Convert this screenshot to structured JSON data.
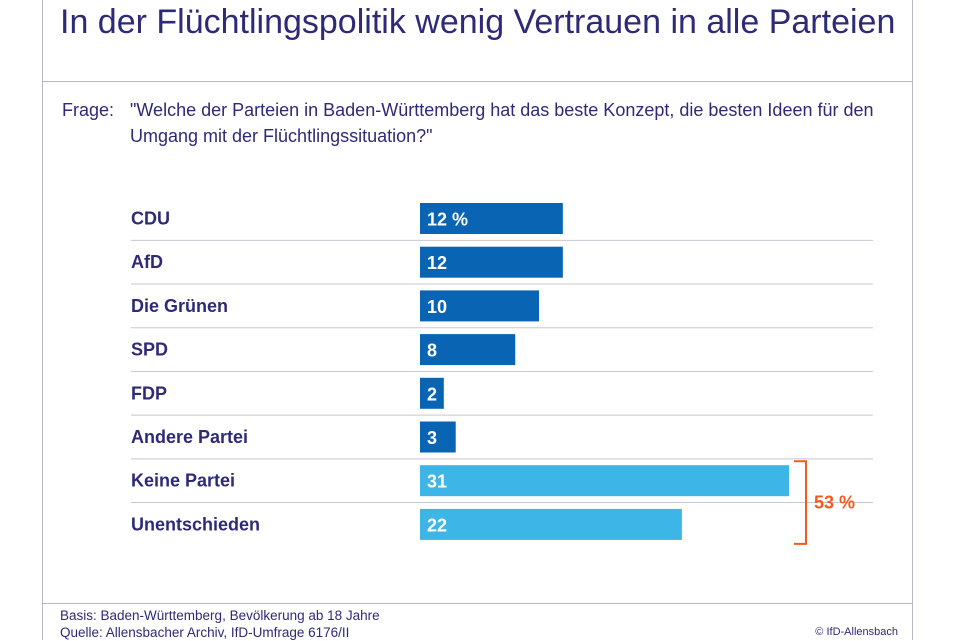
{
  "title": "In der Flüchtlingspolitik wenig Vertrauen in alle Parteien",
  "question": {
    "prefix": "Frage:",
    "text": "\"Welche der Parteien in Baden-Württemberg hat das beste Konzept, die besten Ideen für den Umgang mit der Flüchtlingssituation?\""
  },
  "chart_data": {
    "type": "bar",
    "orientation": "horizontal",
    "categories": [
      "CDU",
      "AfD",
      "Die Grünen",
      "SPD",
      "FDP",
      "Andere Partei",
      "Keine Partei",
      "Unentschieden"
    ],
    "values": [
      12,
      12,
      10,
      8,
      2,
      3,
      31,
      22
    ],
    "value_labels": [
      "12 %",
      "12",
      "10",
      "8",
      "2",
      "3",
      "31",
      "22"
    ],
    "unit": "%",
    "xlim": [
      0,
      31
    ],
    "grid": false,
    "colors": {
      "party_bar": "#0a64b4",
      "no_party_bar": "#3db5e6",
      "bracket": "#f25a1e",
      "label": "#2e2a78",
      "separator": "#c8c8d2"
    },
    "bar_color_groups": [
      "party",
      "party",
      "party",
      "party",
      "party",
      "party",
      "none",
      "none"
    ],
    "bracket": {
      "categories": [
        "Keine Partei",
        "Unentschieden"
      ],
      "label": "53 %",
      "value": 53
    }
  },
  "footer": {
    "basis": "Basis: Baden-Württemberg, Bevölkerung ab 18 Jahre",
    "source": "Quelle: Allensbacher Archiv, IfD-Umfrage 6176/II",
    "copyright": "© IfD-Allensbach"
  }
}
